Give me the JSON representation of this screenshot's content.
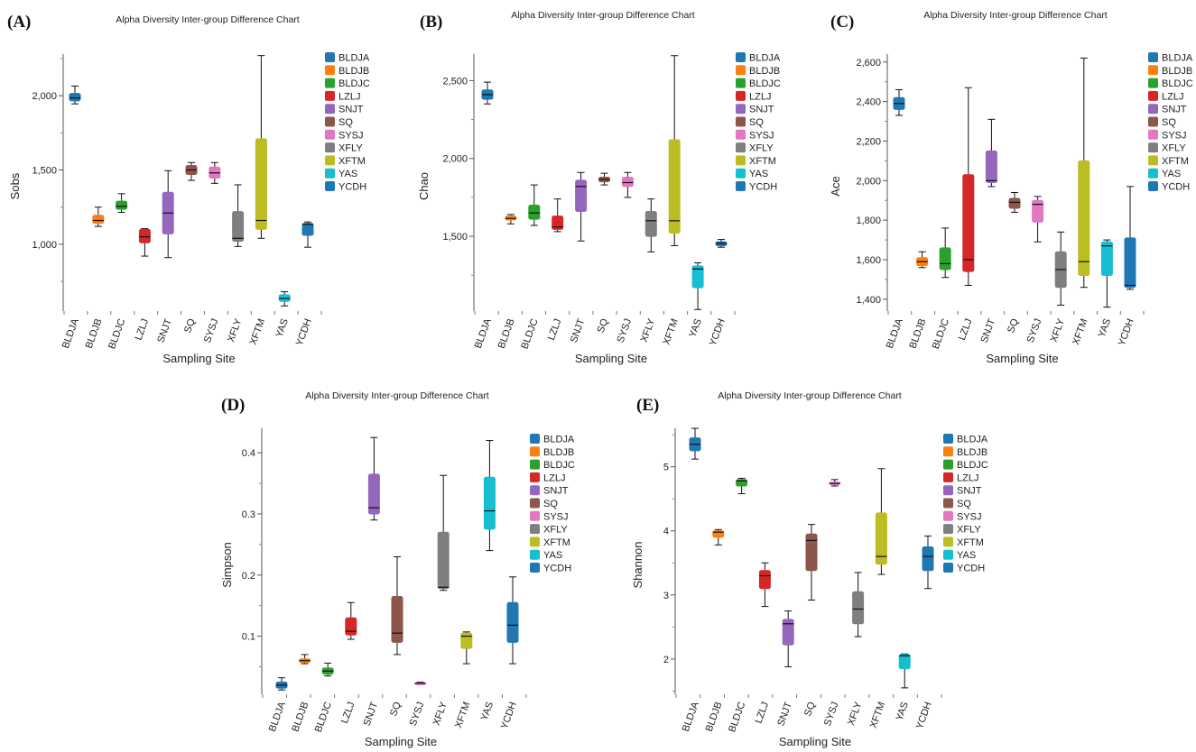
{
  "panel_letters": [
    "(A)",
    "(B)",
    "(C)",
    "(D)",
    "(E)"
  ],
  "legend": {
    "entries": [
      "BLDJA",
      "BLDJB",
      "BLDJC",
      "LZLJ",
      "SNJT",
      "SQ",
      "SYSJ",
      "XFLY",
      "XFTM",
      "YAS",
      "YCDH"
    ],
    "colors": [
      "#1f77b4",
      "#ff7f0e",
      "#2ca02c",
      "#d62728",
      "#9467bd",
      "#8c564b",
      "#e377c2",
      "#7f7f7f",
      "#bcbd22",
      "#17becf",
      "#1f77b4"
    ]
  },
  "chart_data": [
    {
      "type": "box",
      "panel": "(A)",
      "title": "Alpha Diversity Inter-group Difference Chart",
      "xlabel": "Sampling Site",
      "ylabel": "Sobs",
      "ylim": [
        550,
        2280
      ],
      "yticks": [
        1000,
        1500,
        2000
      ],
      "ytick_labels": [
        "1,000",
        "1,500",
        "2,000"
      ],
      "categories": [
        "BLDJA",
        "BLDJB",
        "BLDJC",
        "LZLJ",
        "SNJT",
        "SQ",
        "SYSJ",
        "XFLY",
        "XFTM",
        "YAS",
        "YCDH"
      ],
      "boxes": [
        {
          "min": 1945,
          "q1": 1965,
          "median": 1985,
          "q3": 2015,
          "max": 2065
        },
        {
          "min": 1120,
          "q1": 1140,
          "median": 1160,
          "q3": 1195,
          "max": 1250
        },
        {
          "min": 1215,
          "q1": 1235,
          "median": 1255,
          "q3": 1290,
          "max": 1340
        },
        {
          "min": 920,
          "q1": 1010,
          "median": 1050,
          "q3": 1100,
          "max": 1105
        },
        {
          "min": 910,
          "q1": 1070,
          "median": 1210,
          "q3": 1350,
          "max": 1495
        },
        {
          "min": 1430,
          "q1": 1470,
          "median": 1500,
          "q3": 1530,
          "max": 1550
        },
        {
          "min": 1410,
          "q1": 1445,
          "median": 1480,
          "q3": 1520,
          "max": 1550
        },
        {
          "min": 985,
          "q1": 1020,
          "median": 1040,
          "q3": 1220,
          "max": 1400
        },
        {
          "min": 1040,
          "q1": 1100,
          "median": 1160,
          "q3": 1710,
          "max": 2270
        },
        {
          "min": 585,
          "q1": 615,
          "median": 635,
          "q3": 660,
          "max": 680
        },
        {
          "min": 980,
          "q1": 1060,
          "median": 1135,
          "q3": 1140,
          "max": 1150
        }
      ]
    },
    {
      "type": "box",
      "panel": "(B)",
      "title": "Alpha Diversity Inter-group Difference Chart",
      "xlabel": "Sampling Site",
      "ylabel": "Chao",
      "ylim": [
        1020,
        2670
      ],
      "yticks": [
        1500,
        2000,
        2500
      ],
      "ytick_labels": [
        "1,500",
        "2,000",
        "2,500"
      ],
      "categories": [
        "BLDJA",
        "BLDJB",
        "BLDJC",
        "LZLJ",
        "SNJT",
        "SQ",
        "SYSJ",
        "XFLY",
        "XFTM",
        "YAS",
        "YCDH"
      ],
      "boxes": [
        {
          "min": 2350,
          "q1": 2380,
          "median": 2410,
          "q3": 2440,
          "max": 2490
        },
        {
          "min": 1580,
          "q1": 1605,
          "median": 1615,
          "q3": 1630,
          "max": 1640
        },
        {
          "min": 1570,
          "q1": 1610,
          "median": 1650,
          "q3": 1700,
          "max": 1830
        },
        {
          "min": 1530,
          "q1": 1545,
          "median": 1560,
          "q3": 1630,
          "max": 1740
        },
        {
          "min": 1470,
          "q1": 1660,
          "median": 1820,
          "q3": 1860,
          "max": 1910
        },
        {
          "min": 1830,
          "q1": 1850,
          "median": 1865,
          "q3": 1880,
          "max": 1905
        },
        {
          "min": 1750,
          "q1": 1820,
          "median": 1845,
          "q3": 1880,
          "max": 1910
        },
        {
          "min": 1400,
          "q1": 1500,
          "median": 1600,
          "q3": 1660,
          "max": 1740
        },
        {
          "min": 1440,
          "q1": 1520,
          "median": 1600,
          "q3": 2120,
          "max": 2660
        },
        {
          "min": 1030,
          "q1": 1170,
          "median": 1290,
          "q3": 1310,
          "max": 1330
        },
        {
          "min": 1430,
          "q1": 1440,
          "median": 1455,
          "q3": 1465,
          "max": 1480
        }
      ]
    },
    {
      "type": "box",
      "panel": "(C)",
      "title": "Alpha Diversity Inter-group Difference Chart",
      "xlabel": "Sampling Site",
      "ylabel": "Ace",
      "ylim": [
        1340,
        2640
      ],
      "yticks": [
        1400,
        1600,
        1800,
        2000,
        2200,
        2400,
        2600
      ],
      "ytick_labels": [
        "1,400",
        "1,600",
        "1,800",
        "2,000",
        "2,200",
        "2,400",
        "2,600"
      ],
      "categories": [
        "BLDJA",
        "BLDJB",
        "BLDJC",
        "LZLJ",
        "SNJT",
        "SQ",
        "SYSJ",
        "XFLY",
        "XFTM",
        "YAS",
        "YCDH"
      ],
      "boxes": [
        {
          "min": 2330,
          "q1": 2360,
          "median": 2390,
          "q3": 2420,
          "max": 2460
        },
        {
          "min": 1560,
          "q1": 1570,
          "median": 1590,
          "q3": 1610,
          "max": 1640
        },
        {
          "min": 1510,
          "q1": 1550,
          "median": 1580,
          "q3": 1660,
          "max": 1760
        },
        {
          "min": 1470,
          "q1": 1540,
          "median": 1600,
          "q3": 2030,
          "max": 2470
        },
        {
          "min": 1970,
          "q1": 1990,
          "median": 2000,
          "q3": 2150,
          "max": 2310
        },
        {
          "min": 1840,
          "q1": 1860,
          "median": 1890,
          "q3": 1910,
          "max": 1940
        },
        {
          "min": 1690,
          "q1": 1790,
          "median": 1880,
          "q3": 1900,
          "max": 1920
        },
        {
          "min": 1370,
          "q1": 1460,
          "median": 1550,
          "q3": 1640,
          "max": 1740
        },
        {
          "min": 1460,
          "q1": 1520,
          "median": 1590,
          "q3": 2100,
          "max": 2620
        },
        {
          "min": 1360,
          "q1": 1520,
          "median": 1670,
          "q3": 1690,
          "max": 1700
        },
        {
          "min": 1450,
          "q1": 1460,
          "median": 1470,
          "q3": 1710,
          "max": 1970
        }
      ]
    },
    {
      "type": "box",
      "panel": "(D)",
      "title": "Alpha Diversity Inter-group Difference Chart",
      "xlabel": "Sampling Site",
      "ylabel": "Simpson",
      "ylim": [
        0.005,
        0.44
      ],
      "yticks": [
        0.1,
        0.2,
        0.3,
        0.4
      ],
      "ytick_labels": [
        "0.1",
        "0.2",
        "0.3",
        "0.4"
      ],
      "categories": [
        "BLDJA",
        "BLDJB",
        "BLDJC",
        "LZLJ",
        "SNJT",
        "SQ",
        "SYSJ",
        "XFLY",
        "XFTM",
        "YAS",
        "YCDH"
      ],
      "boxes": [
        {
          "min": 0.012,
          "q1": 0.015,
          "median": 0.02,
          "q3": 0.025,
          "max": 0.032
        },
        {
          "min": 0.055,
          "q1": 0.057,
          "median": 0.06,
          "q3": 0.063,
          "max": 0.07
        },
        {
          "min": 0.035,
          "q1": 0.038,
          "median": 0.043,
          "q3": 0.048,
          "max": 0.056
        },
        {
          "min": 0.095,
          "q1": 0.102,
          "median": 0.108,
          "q3": 0.13,
          "max": 0.155
        },
        {
          "min": 0.29,
          "q1": 0.3,
          "median": 0.31,
          "q3": 0.365,
          "max": 0.425
        },
        {
          "min": 0.07,
          "q1": 0.09,
          "median": 0.105,
          "q3": 0.165,
          "max": 0.23
        },
        {
          "min": 0.021,
          "q1": 0.022,
          "median": 0.023,
          "q3": 0.024,
          "max": 0.025
        },
        {
          "min": 0.175,
          "q1": 0.178,
          "median": 0.18,
          "q3": 0.27,
          "max": 0.363
        },
        {
          "min": 0.055,
          "q1": 0.08,
          "median": 0.1,
          "q3": 0.105,
          "max": 0.107
        },
        {
          "min": 0.24,
          "q1": 0.275,
          "median": 0.305,
          "q3": 0.36,
          "max": 0.42
        },
        {
          "min": 0.055,
          "q1": 0.09,
          "median": 0.118,
          "q3": 0.155,
          "max": 0.197
        }
      ]
    },
    {
      "type": "box",
      "panel": "(E)",
      "title": "Alpha Diversity Inter-group Difference Chart",
      "xlabel": "Sampling Site",
      "ylabel": "Shannon",
      "ylim": [
        1.45,
        5.6
      ],
      "yticks": [
        2,
        3,
        4,
        5
      ],
      "ytick_labels": [
        "2",
        "3",
        "4",
        "5"
      ],
      "categories": [
        "BLDJA",
        "BLDJB",
        "BLDJC",
        "LZLJ",
        "SNJT",
        "SQ",
        "SYSJ",
        "XFLY",
        "XFTM",
        "YAS",
        "YCDH"
      ],
      "boxes": [
        {
          "min": 5.12,
          "q1": 5.25,
          "median": 5.35,
          "q3": 5.45,
          "max": 5.6
        },
        {
          "min": 3.78,
          "q1": 3.9,
          "median": 3.98,
          "q3": 4.0,
          "max": 4.02
        },
        {
          "min": 4.58,
          "q1": 4.7,
          "median": 4.78,
          "q3": 4.8,
          "max": 4.82
        },
        {
          "min": 2.82,
          "q1": 3.1,
          "median": 3.3,
          "q3": 3.38,
          "max": 3.5
        },
        {
          "min": 1.88,
          "q1": 2.22,
          "median": 2.55,
          "q3": 2.62,
          "max": 2.75
        },
        {
          "min": 2.92,
          "q1": 3.38,
          "median": 3.85,
          "q3": 3.95,
          "max": 4.1
        },
        {
          "min": 4.7,
          "q1": 4.72,
          "median": 4.74,
          "q3": 4.76,
          "max": 4.8
        },
        {
          "min": 2.35,
          "q1": 2.55,
          "median": 2.78,
          "q3": 3.05,
          "max": 3.35
        },
        {
          "min": 3.32,
          "q1": 3.48,
          "median": 3.6,
          "q3": 4.28,
          "max": 4.97
        },
        {
          "min": 1.55,
          "q1": 1.85,
          "median": 2.05,
          "q3": 2.07,
          "max": 2.08
        },
        {
          "min": 3.1,
          "q1": 3.38,
          "median": 3.6,
          "q3": 3.75,
          "max": 3.92
        }
      ]
    }
  ]
}
